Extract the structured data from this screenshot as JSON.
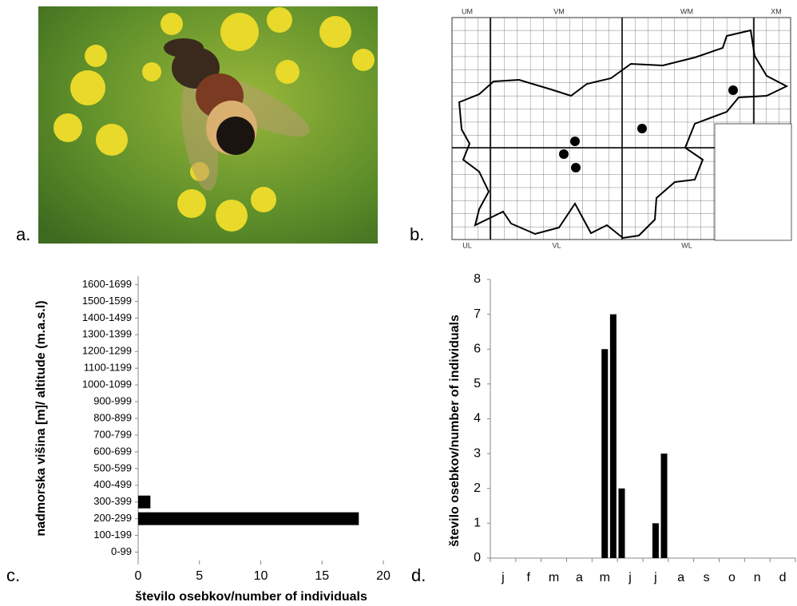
{
  "panel_labels": [
    "a.",
    "b.",
    "c.",
    "d."
  ],
  "map": {
    "grid_labels": [
      "UM",
      "VM",
      "WM",
      "XM",
      "UL",
      "VL",
      "WL"
    ]
  },
  "chart_data": [
    {
      "type": "bar",
      "orientation": "horizontal",
      "categories": [
        "0-99",
        "100-199",
        "200-299",
        "300-399",
        "400-499",
        "500-599",
        "600-699",
        "700-799",
        "800-899",
        "900-999",
        "1000-1099",
        "1100-1199",
        "1200-1299",
        "1300-1399",
        "1400-1499",
        "1500-1599",
        "1600-1699"
      ],
      "values": [
        0,
        0,
        18,
        1,
        0,
        0,
        0,
        0,
        0,
        0,
        0,
        0,
        0,
        0,
        0,
        0,
        0
      ],
      "color": "#000000",
      "xlim": [
        0,
        20
      ],
      "xticks": [
        0,
        5,
        10,
        15,
        20
      ],
      "xlabel": "število osebkov/number of individuals",
      "ylabel": "nadmorska višina [m]/ altitude (m.a.s.l)"
    },
    {
      "type": "bar",
      "categories": [
        null,
        "j",
        null,
        null,
        "f",
        null,
        null,
        "m",
        null,
        null,
        "a",
        null,
        null,
        "m",
        null,
        null,
        "j",
        null,
        null,
        "j",
        null,
        null,
        "a",
        null,
        null,
        "s",
        null,
        null,
        "o",
        null,
        null,
        "n",
        null,
        null,
        "d",
        null
      ],
      "values": [
        0,
        0,
        0,
        0,
        0,
        0,
        0,
        0,
        0,
        0,
        0,
        0,
        0,
        6,
        7,
        2,
        0,
        0,
        0,
        1,
        3,
        0,
        0,
        0,
        0,
        0,
        0,
        0,
        0,
        0,
        0,
        0,
        0,
        0,
        0,
        0
      ],
      "color": "#000000",
      "ylim": [
        0,
        8
      ],
      "yticks": [
        0,
        1,
        2,
        3,
        4,
        5,
        6,
        7,
        8
      ],
      "ylabel": "število osebkov/number of individuals"
    }
  ]
}
